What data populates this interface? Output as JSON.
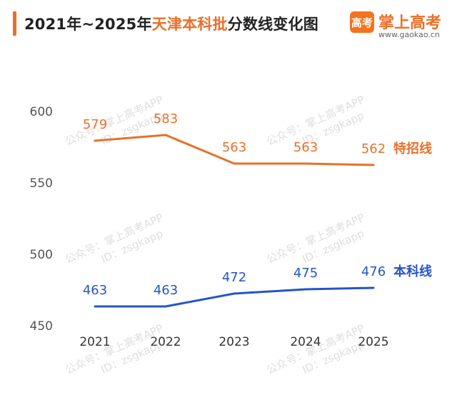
{
  "header": {
    "title_prefix": "2021年~2025年",
    "title_highlight": "天津本科批",
    "title_suffix": "分数线变化图",
    "accent_color": "#e8702a"
  },
  "logo": {
    "badge_text": "高考",
    "name": "掌上高考",
    "url": "www.gaokao.cn"
  },
  "watermark": {
    "line1": "公众号：掌上高考APP",
    "line2": "ID：zsgkapp"
  },
  "chart_data": {
    "type": "line",
    "categories": [
      "2021",
      "2022",
      "2023",
      "2024",
      "2025"
    ],
    "series": [
      {
        "name": "特招线",
        "values": [
          579,
          583,
          563,
          563,
          562
        ],
        "color": "#e8702a"
      },
      {
        "name": "本科线",
        "values": [
          463,
          463,
          472,
          475,
          476
        ],
        "color": "#2355c8"
      }
    ],
    "yticks": [
      450,
      500,
      550,
      600
    ],
    "ylim": [
      450,
      600
    ],
    "grid": false,
    "legend": "line-end labels"
  }
}
